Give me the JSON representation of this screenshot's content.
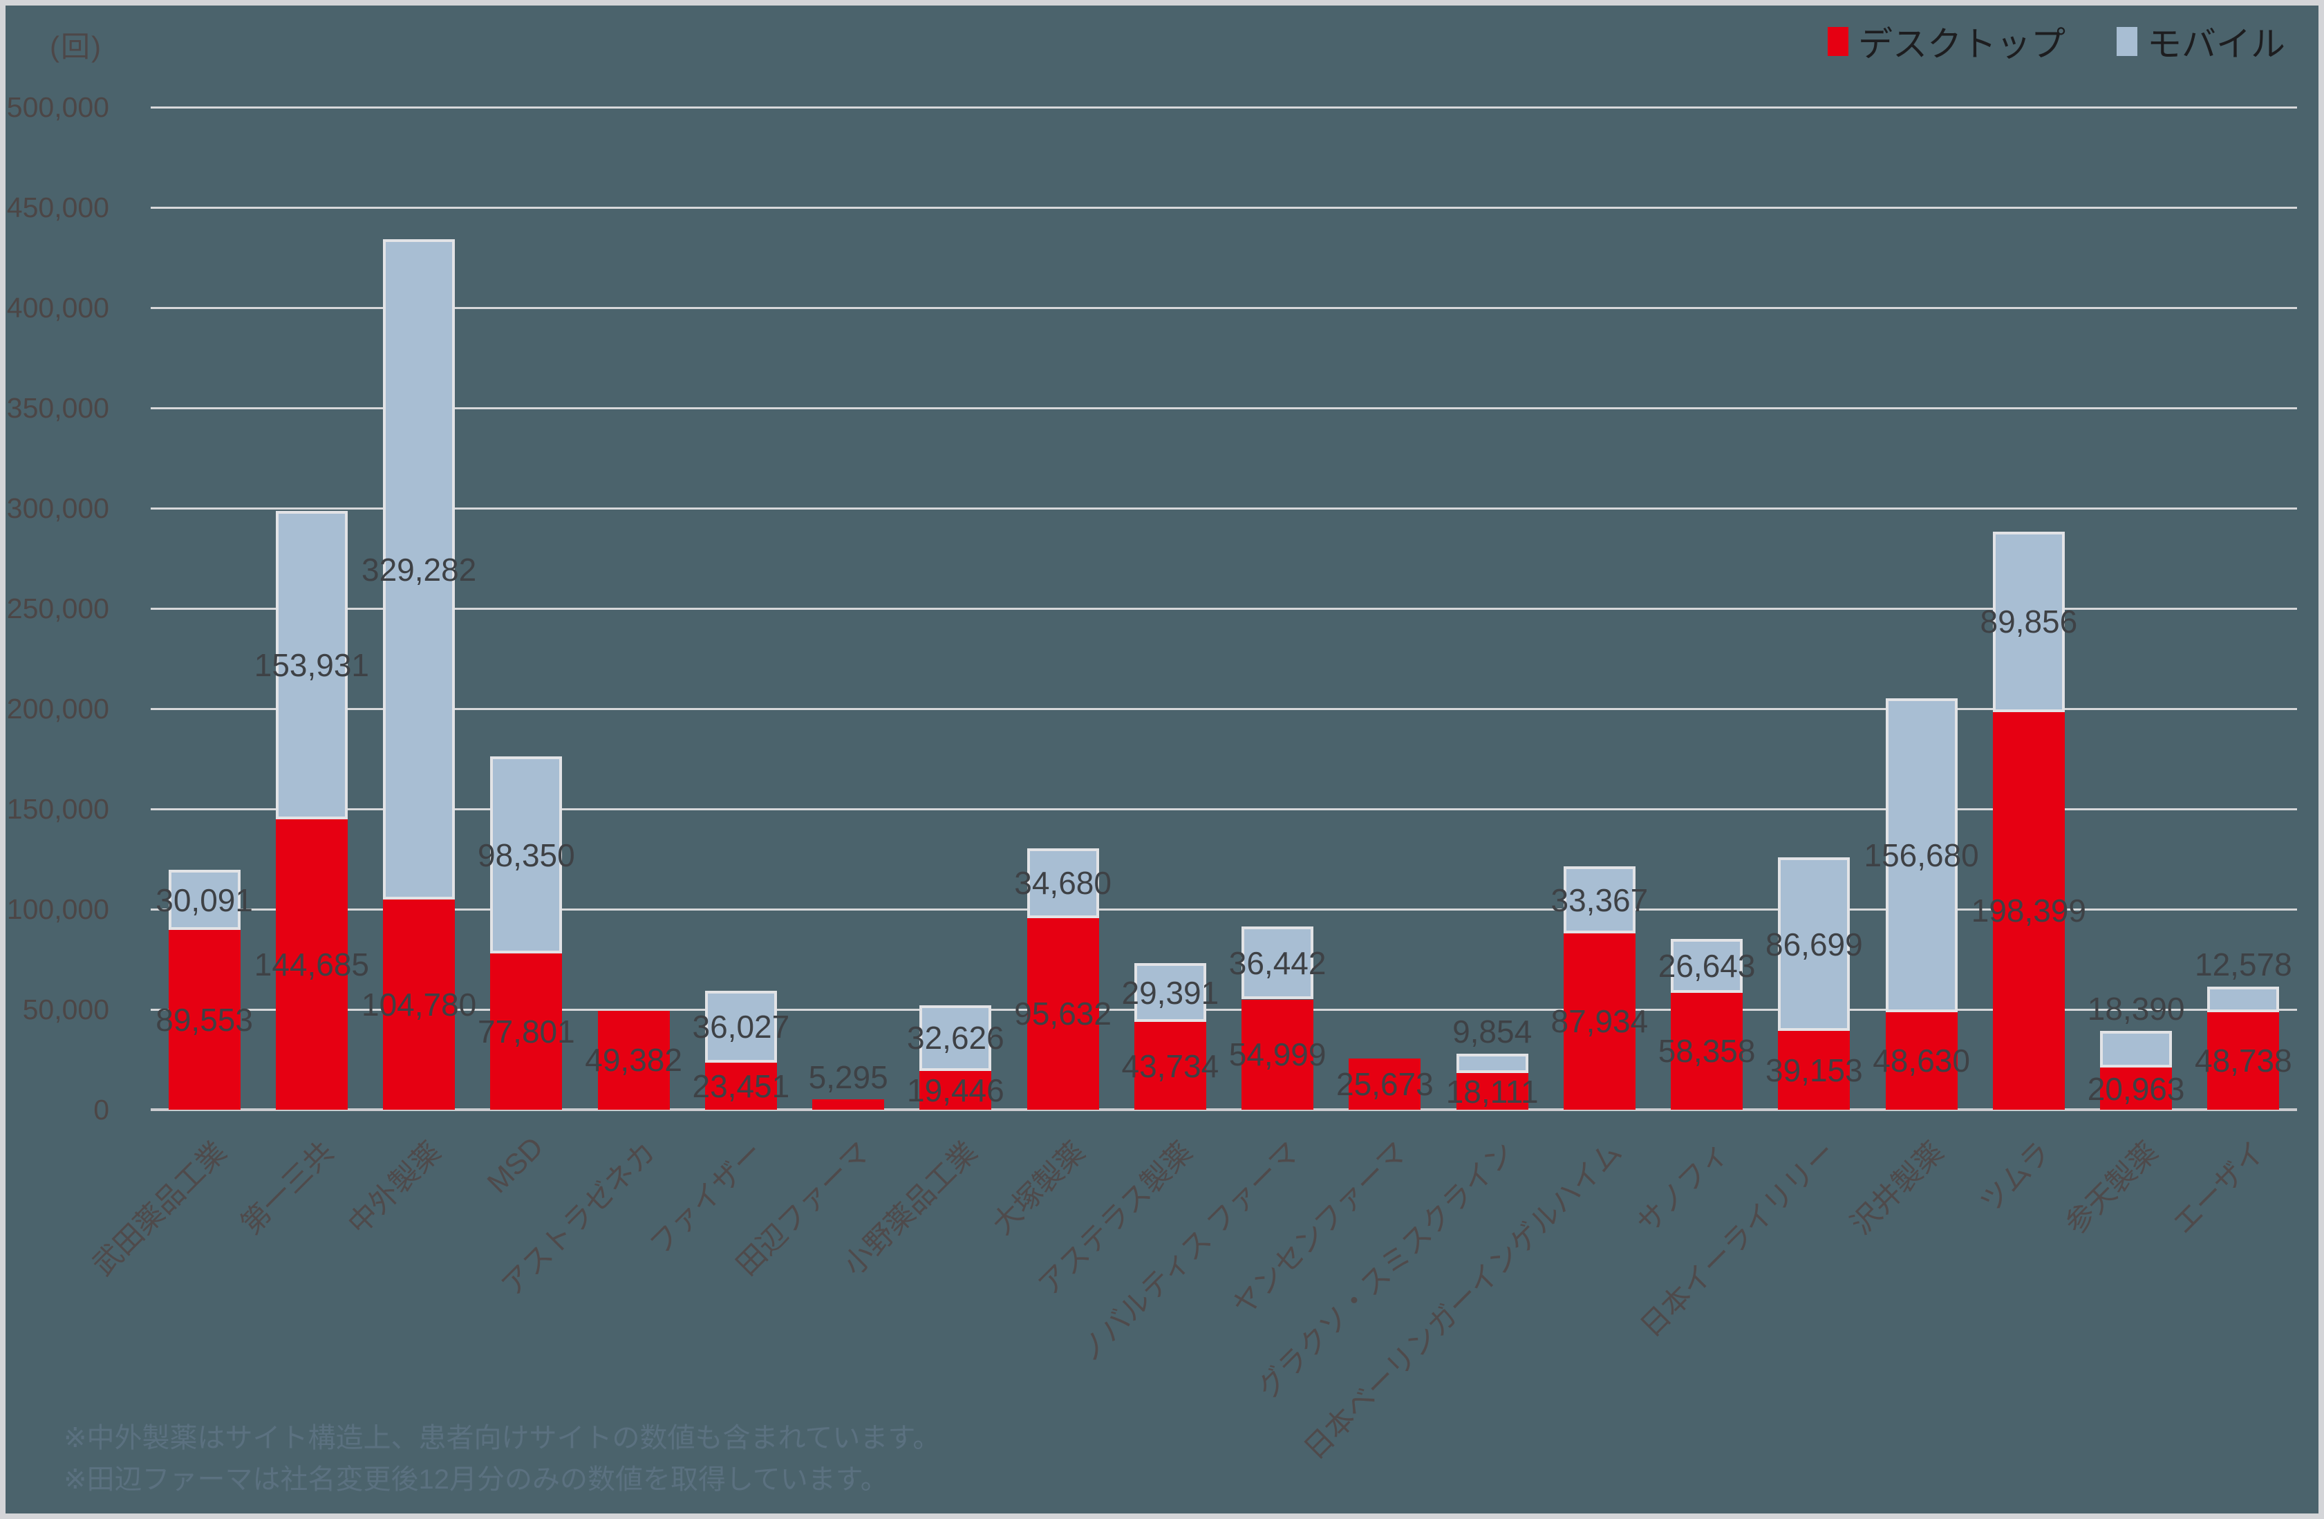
{
  "chart_data": {
    "type": "bar",
    "stacked": true,
    "title": "",
    "unit_label": "(回)",
    "categories": [
      "武田薬品工業",
      "第一三共",
      "中外製薬",
      "MSD",
      "アストラゼネカ",
      "ファイザー",
      "田辺ファーマ",
      "小野薬品工業",
      "大塚製薬",
      "アステラス製薬",
      "ノバルティス ファーマ",
      "ヤンセンファーマ",
      "グラクソ・スミスクライン",
      "日本ベーリンガーインゲルハイム",
      "サノフィ",
      "日本イーライリリー",
      "沢井製薬",
      "ツムラ",
      "参天製薬",
      "エーザイ"
    ],
    "series": [
      {
        "name": "デスクトップ",
        "color": "#e60012",
        "values": [
          89553,
          144685,
          104780,
          77801,
          49382,
          23451,
          5295,
          19446,
          95632,
          43734,
          54999,
          25673,
          18111,
          87934,
          58358,
          39153,
          48630,
          198399,
          20963,
          48738
        ]
      },
      {
        "name": "モバイル",
        "color": "#a8bed3",
        "values": [
          30091,
          153931,
          329282,
          98350,
          0,
          36027,
          0,
          32626,
          34680,
          29391,
          36442,
          0,
          9854,
          33367,
          26643,
          86699,
          156680,
          89856,
          18390,
          12578
        ]
      }
    ],
    "ylim": [
      0,
      500000
    ],
    "ytick_interval": 50000,
    "grid": true,
    "legend_position": "top-right",
    "value_labels": true,
    "colors": {
      "background": "#4b636c",
      "gridline": "#d7d8da",
      "value_label": "#3e4145",
      "axis_label": "#4c4646",
      "category_label": "#4f4a4b",
      "footnote": "#5b7180"
    }
  },
  "footnotes": [
    "※中外製薬はサイト構造上、患者向けサイトの数値も含まれています。",
    "※田辺ファーマは社名変更後12月分のみの数値を取得しています。"
  ]
}
